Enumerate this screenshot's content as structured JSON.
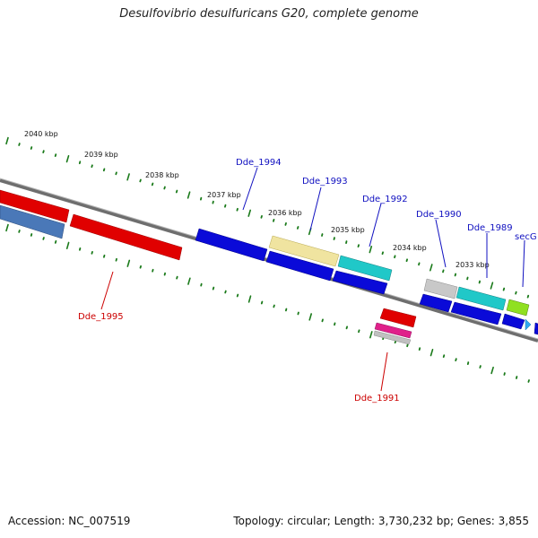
{
  "title": "Desulfovibrio desulfuricans G20, complete genome",
  "footer": {
    "accession": "Accession: NC_007519",
    "summary": "Topology: circular; Length: 3,730,232 bp; Genes: 3,855"
  },
  "colors": {
    "backbone": "#7a7a7a",
    "tick": "#1a7a1a",
    "label_blue": "#1010c0",
    "label_red": "#cc0000"
  },
  "scale_labels": [
    "2040 kbp",
    "2039 kbp",
    "2038 kbp",
    "2037 kbp",
    "2036 kbp",
    "2035 kbp",
    "2034 kbp",
    "2033 kbp"
  ],
  "genes": [
    {
      "name": "Dde_1995",
      "color": "red"
    },
    {
      "name": "Dde_1994",
      "color": "blue"
    },
    {
      "name": "Dde_1993",
      "color": "blue"
    },
    {
      "name": "Dde_1992",
      "color": "blue"
    },
    {
      "name": "Dde_1991",
      "color": "red"
    },
    {
      "name": "Dde_1990",
      "color": "blue"
    },
    {
      "name": "Dde_1989",
      "color": "blue"
    },
    {
      "name": "secG",
      "color": "blue"
    }
  ]
}
